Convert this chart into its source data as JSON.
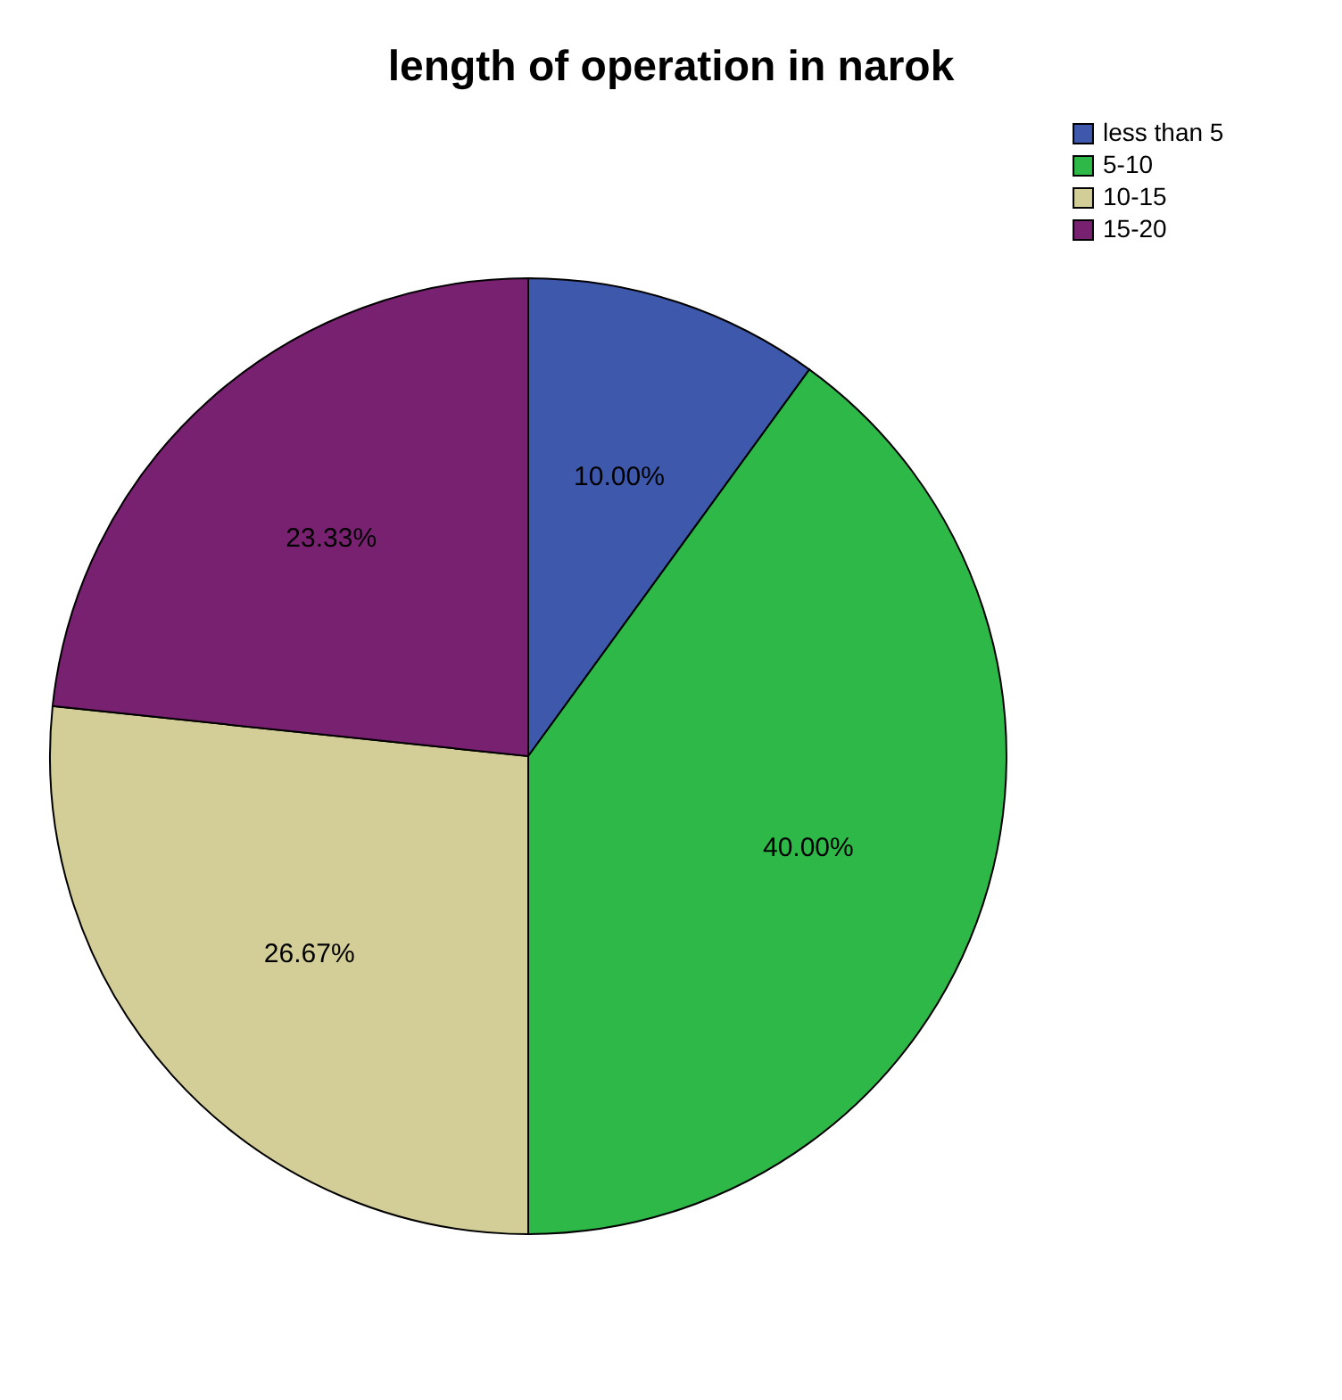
{
  "chart_data": {
    "type": "pie",
    "title": "length of operation in narok",
    "categories": [
      "less than 5",
      "5-10",
      "10-15",
      "15-20"
    ],
    "values": [
      10,
      40,
      26.67,
      23.33
    ],
    "value_labels": [
      "10.00%",
      "40.00%",
      "26.67%",
      "23.33%"
    ],
    "colors": [
      "#3e58ac",
      "#2eb848",
      "#d3ce97",
      "#782170"
    ],
    "legend": "top right"
  }
}
